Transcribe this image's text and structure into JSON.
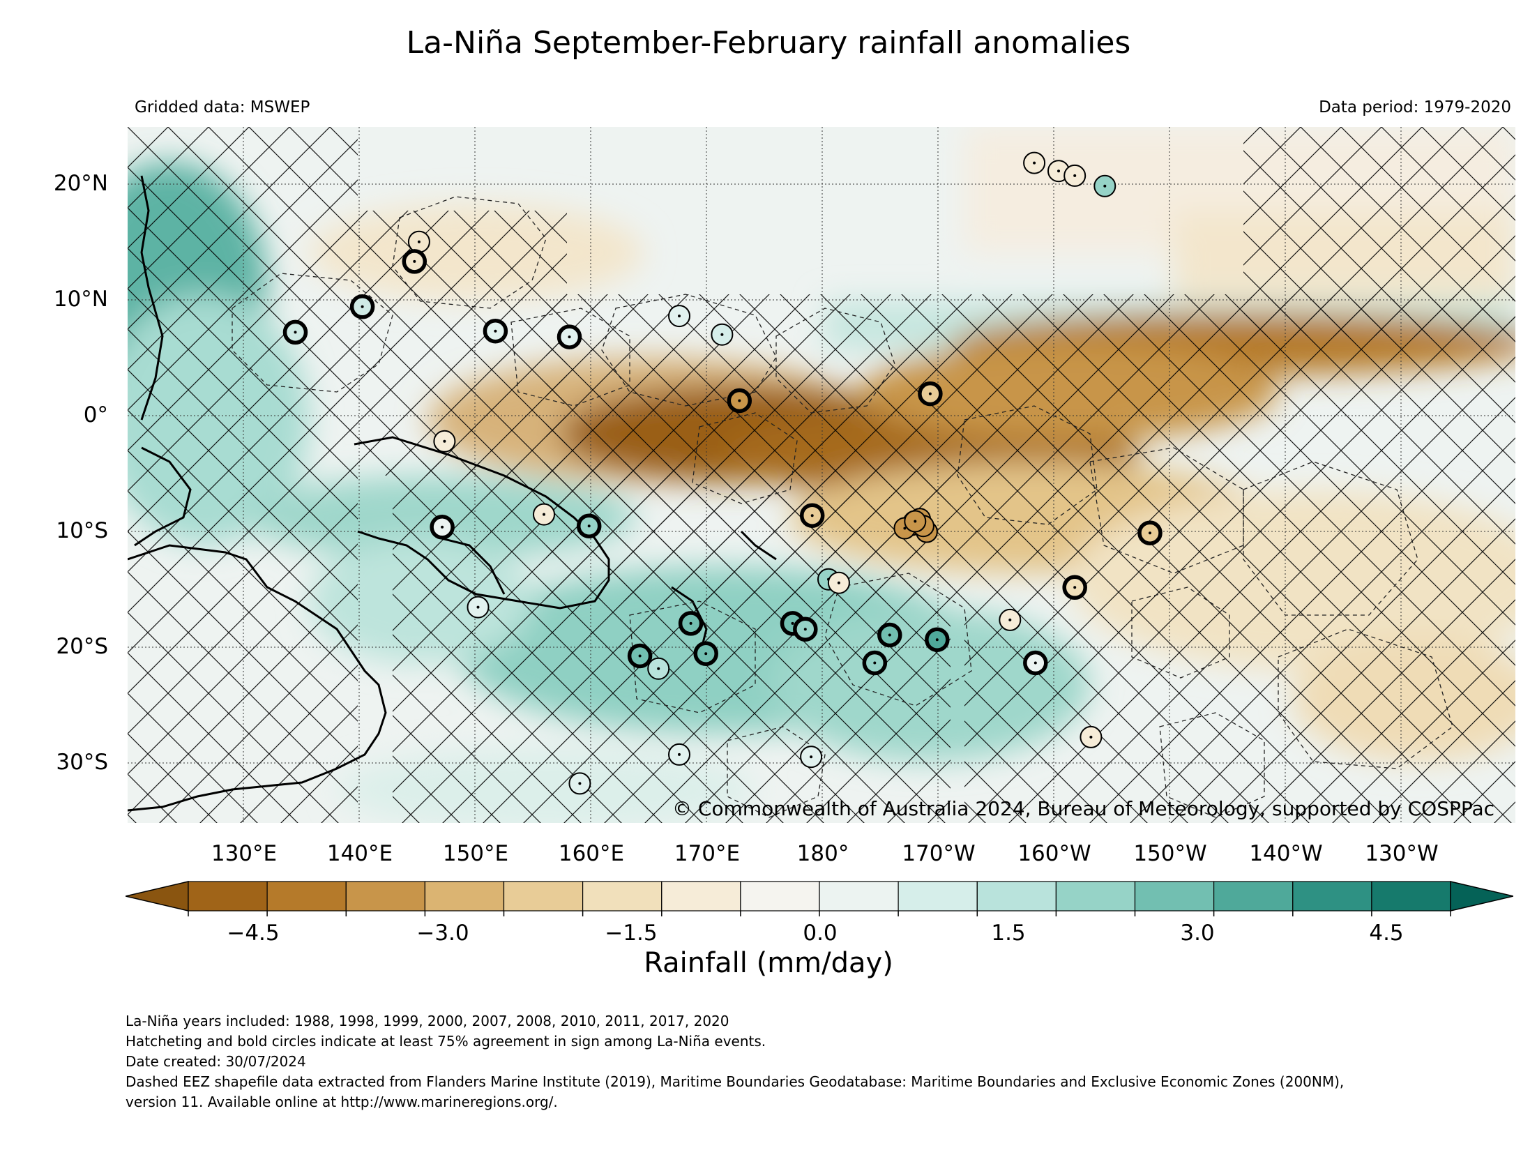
{
  "title": "La-Niña September-February rainfall anomalies",
  "gridded_data": "Gridded data: MSWEP",
  "data_period": "Data period: 1979-2020",
  "lat_labels": [
    "20°N",
    "10°N",
    "0°",
    "10°S",
    "20°S",
    "30°S"
  ],
  "lon_labels": [
    "130°E",
    "140°E",
    "150°E",
    "160°E",
    "170°E",
    "180°",
    "170°W",
    "160°W",
    "150°W",
    "140°W",
    "130°W"
  ],
  "copyright": "© Commonwealth of Australia 2024, Bureau of Meteorology, supported by COSPPac",
  "colorbar": {
    "title": "Rainfall (mm/day)",
    "tick_labels": [
      "−4.5",
      "−3.0",
      "−1.5",
      "0.0",
      "1.5",
      "3.0",
      "4.5"
    ],
    "colors": [
      "#8a5510",
      "#a06418",
      "#b57a2a",
      "#c8954a",
      "#dbb472",
      "#e8cc97",
      "#f1e0bb",
      "#f6ecd8",
      "#f5f4ef",
      "#ecf3f1",
      "#d6eeea",
      "#b9e3dc",
      "#96d3c7",
      "#72bfb1",
      "#4fa99a",
      "#2e9183",
      "#167a6c",
      "#056257"
    ],
    "extend": "both"
  },
  "notes": [
    "La-Niña years included: 1988, 1998, 1999, 2000, 2007, 2008, 2010, 2011, 2017, 2020",
    "Hatcheting and bold circles indicate at least 75% agreement in sign among La-Niña events.",
    "Date created: 30/07/2024",
    "Dashed EEZ shapefile data extracted from Flanders Marine Institute (2019), Maritime Boundaries Geodatabase: Maritime Boundaries and Exclusive Economic Zones (200NM),",
    "version 11. Available online at http://www.marineregions.org/."
  ],
  "map": {
    "extent_lon": [
      120,
      240
    ],
    "extent_lat": [
      -35,
      25
    ],
    "gridlines": true,
    "stations": [
      {
        "lon": 140.3,
        "lat": 9.5,
        "bold": true,
        "color": "#cfeae5"
      },
      {
        "lon": 134.5,
        "lat": 7.3,
        "bold": true,
        "color": "#cfeae5"
      },
      {
        "lon": 145.2,
        "lat": 15.1,
        "bold": false,
        "color": "#f3e6cc"
      },
      {
        "lon": 144.8,
        "lat": 13.4,
        "bold": true,
        "color": "#f3e6cc"
      },
      {
        "lon": 151.8,
        "lat": 7.4,
        "bold": true,
        "color": "#e2f2ef"
      },
      {
        "lon": 158.2,
        "lat": 6.9,
        "bold": true,
        "color": "#e2f2ef"
      },
      {
        "lon": 167.7,
        "lat": 8.7,
        "bold": false,
        "color": "#e2f2ef"
      },
      {
        "lon": 171.4,
        "lat": 7.1,
        "bold": false,
        "color": "#d6eeea"
      },
      {
        "lon": 172.9,
        "lat": 1.4,
        "bold": true,
        "color": "#c8954a"
      },
      {
        "lon": 189.4,
        "lat": 2.0,
        "bold": true,
        "color": "#e8cc97"
      },
      {
        "lon": 147.4,
        "lat": -2.1,
        "bold": false,
        "color": "#f6ecd8"
      },
      {
        "lon": 147.2,
        "lat": -9.5,
        "bold": true,
        "color": "#ecf3f1"
      },
      {
        "lon": 156.0,
        "lat": -8.4,
        "bold": false,
        "color": "#f6ecd8"
      },
      {
        "lon": 159.9,
        "lat": -9.4,
        "bold": true,
        "color": "#96d3c7"
      },
      {
        "lon": 179.2,
        "lat": -8.5,
        "bold": true,
        "color": "#e8cc97"
      },
      {
        "lon": 188.1,
        "lat": -9.1,
        "bold": true,
        "color": "#b57a2a"
      },
      {
        "lon": 188.0,
        "lat": -9.2,
        "bold": false,
        "color": "#b57a2a"
      },
      {
        "lon": 187.8,
        "lat": -9.3,
        "bold": false,
        "color": "#b57a2a"
      },
      {
        "lon": 189.1,
        "lat": -9.9,
        "bold": false,
        "color": "#c8954a"
      },
      {
        "lon": 188.5,
        "lat": -8.8,
        "bold": false,
        "color": "#c8954a"
      },
      {
        "lon": 187.2,
        "lat": -9.6,
        "bold": false,
        "color": "#c8954a"
      },
      {
        "lon": 188.8,
        "lat": -9.4,
        "bold": false,
        "color": "#c8954a"
      },
      {
        "lon": 188.1,
        "lat": -9.0,
        "bold": false,
        "color": "#c8954a"
      },
      {
        "lon": 188.0,
        "lat": -9.0,
        "bold": true,
        "color": "#c8954a"
      },
      {
        "lon": 188.1,
        "lat": -9.0,
        "bold": true,
        "color": "#b57a2a"
      },
      {
        "lon": 188.2,
        "lat": -9.1,
        "bold": true,
        "color": "#b57a2a"
      },
      {
        "lon": 188.0,
        "lat": -9.2,
        "bold": true,
        "color": "#b57a2a"
      },
      {
        "lon": 188.0,
        "lat": -9.1,
        "bold": true,
        "color": "#b57a2a"
      },
      {
        "lon": 188.1,
        "lat": -9.0,
        "bold": true,
        "color": "#b57a2a"
      },
      {
        "lon": 188.0,
        "lat": -9.0,
        "bold": true,
        "color": "#b57a2a"
      },
      {
        "lon": 188.1,
        "lat": -9.1,
        "bold": true,
        "color": "#b57a2a"
      },
      {
        "lon": 188.0,
        "lat": -9.0,
        "bold": true,
        "color": "#b57a2a"
      },
      {
        "lon": 188.1,
        "lat": -9.1,
        "bold": true,
        "color": "#b57a2a"
      },
      {
        "lon": 188.0,
        "lat": -9.0,
        "bold": true,
        "color": "#b57a2a"
      },
      {
        "lon": 188.1,
        "lat": -9.1,
        "bold": true,
        "color": "#b57a2a"
      },
      {
        "lon": 188.0,
        "lat": -9.0,
        "bold": true,
        "color": "#b57a2a"
      },
      {
        "lon": 188.0,
        "lat": -9.1,
        "bold": true,
        "color": "#b57a2a"
      },
      {
        "lon": 188.1,
        "lat": -9.0,
        "bold": true,
        "color": "#b57a2a"
      },
      {
        "lon": 188.1,
        "lat": -9.1,
        "bold": true,
        "color": "#b57a2a"
      },
      {
        "lon": 188.0,
        "lat": -9.0,
        "bold": true,
        "color": "#b57a2a"
      },
      {
        "lon": 188.0,
        "lat": -9.0,
        "bold": true,
        "color": "#b57a2a"
      },
      {
        "lon": 188.1,
        "lat": -9.1,
        "bold": true,
        "color": "#b57a2a"
      },
      {
        "lon": 188.1,
        "lat": -9.1,
        "bold": true,
        "color": "#b57a2a"
      },
      {
        "lon": 188.0,
        "lat": -9.0,
        "bold": true,
        "color": "#b57a2a"
      },
      {
        "lon": 188.1,
        "lat": -9.0,
        "bold": true,
        "color": "#b57a2a"
      },
      {
        "lon": 188.0,
        "lat": -9.1,
        "bold": true,
        "color": "#b57a2a"
      },
      {
        "lon": 188.0,
        "lat": -9.1,
        "bold": true,
        "color": "#b57a2a"
      },
      {
        "lon": 188.1,
        "lat": -9.0,
        "bold": true,
        "color": "#b57a2a"
      },
      {
        "lon": 188.1,
        "lat": -9.0,
        "bold": true,
        "color": "#b57a2a"
      },
      {
        "lon": 188.0,
        "lat": -9.1,
        "bold": true,
        "color": "#b57a2a"
      },
      {
        "lon": 188.0,
        "lat": -9.0,
        "bold": true,
        "color": "#b57a2a"
      },
      {
        "lon": 188.1,
        "lat": -9.1,
        "bold": true,
        "color": "#b57a2a"
      },
      {
        "lon": 188.0,
        "lat": -9.0,
        "bold": true,
        "color": "#b57a2a"
      },
      {
        "lon": 188.1,
        "lat": -9.0,
        "bold": true,
        "color": "#b57a2a"
      },
      {
        "lon": 188.0,
        "lat": -9.1,
        "bold": true,
        "color": "#b57a2a"
      },
      {
        "lon": 188.1,
        "lat": -9.1,
        "bold": true,
        "color": "#b57a2a"
      },
      {
        "lon": 188.1,
        "lat": -9.0,
        "bold": true,
        "color": "#b57a2a"
      },
      {
        "lon": 188.0,
        "lat": -9.0,
        "bold": true,
        "color": "#b57a2a"
      },
      {
        "lon": 188.0,
        "lat": -9.1,
        "bold": true,
        "color": "#b57a2a"
      },
      {
        "lon": 188.1,
        "lat": -9.0,
        "bold": true,
        "color": "#b57a2a"
      },
      {
        "lon": 188.0,
        "lat": -9.1,
        "bold": true,
        "color": "#b57a2a"
      },
      {
        "lon": 188.1,
        "lat": -9.1,
        "bold": true,
        "color": "#b57a2a"
      },
      {
        "lon": 188.0,
        "lat": -9.0,
        "bold": true,
        "color": "#b57a2a"
      },
      {
        "lon": 188.1,
        "lat": -9.0,
        "bold": true,
        "color": "#b57a2a"
      },
      {
        "lon": 188.0,
        "lat": -9.0,
        "bold": true,
        "color": "#b57a2a"
      },
      {
        "lon": 188.1,
        "lat": -9.1,
        "bold": true,
        "color": "#b57a2a"
      },
      {
        "lon": 188.0,
        "lat": -9.1,
        "bold": true,
        "color": "#b57a2a"
      },
      {
        "lon": 188.1,
        "lat": -9.0,
        "bold": true,
        "color": "#b57a2a"
      },
      {
        "lon": 188.0,
        "lat": -9.0,
        "bold": true,
        "color": "#b57a2a"
      },
      {
        "lon": 208.4,
        "lat": -10.0,
        "bold": true,
        "color": "#e8cc97"
      },
      {
        "lon": 168.7,
        "lat": -17.8,
        "bold": true,
        "color": "#72bfb1"
      },
      {
        "lon": 170.0,
        "lat": -20.4,
        "bold": true,
        "color": "#72bfb1"
      },
      {
        "lon": 164.3,
        "lat": -20.6,
        "bold": true,
        "color": "#72bfb1"
      },
      {
        "lon": 165.9,
        "lat": -21.7,
        "bold": false,
        "color": "#b9e3dc"
      },
      {
        "lon": 150.3,
        "lat": -16.4,
        "bold": false,
        "color": "#e2f2ef"
      },
      {
        "lon": 177.5,
        "lat": -17.8,
        "bold": true,
        "color": "#72bfb1"
      },
      {
        "lon": 178.6,
        "lat": -18.3,
        "bold": true,
        "color": "#96d3c7"
      },
      {
        "lon": 185.9,
        "lat": -18.8,
        "bold": true,
        "color": "#72bfb1"
      },
      {
        "lon": 190.0,
        "lat": -19.2,
        "bold": true,
        "color": "#4fa99a"
      },
      {
        "lon": 184.6,
        "lat": -21.2,
        "bold": true,
        "color": "#96d3c7"
      },
      {
        "lon": 198.5,
        "lat": -21.2,
        "bold": true,
        "color": "#ecf3f1"
      },
      {
        "lon": 201.9,
        "lat": -14.7,
        "bold": true,
        "color": "#f1e0bb"
      },
      {
        "lon": 196.3,
        "lat": -17.5,
        "bold": false,
        "color": "#f6ecd8"
      },
      {
        "lon": 180.6,
        "lat": -14.0,
        "bold": false,
        "color": "#96d3c7"
      },
      {
        "lon": 181.5,
        "lat": -14.3,
        "bold": false,
        "color": "#f6ecd8"
      },
      {
        "lon": 203.3,
        "lat": -27.6,
        "bold": false,
        "color": "#f6ecd8"
      },
      {
        "lon": 167.7,
        "lat": -29.1,
        "bold": false,
        "color": "#e2f2ef"
      },
      {
        "lon": 179.1,
        "lat": -29.3,
        "bold": false,
        "color": "#e2f2ef"
      },
      {
        "lon": 159.1,
        "lat": -31.6,
        "bold": false,
        "color": "#e2f2ef"
      },
      {
        "lon": 198.4,
        "lat": 21.9,
        "bold": false,
        "color": "#f6ecd8"
      },
      {
        "lon": 200.5,
        "lat": 21.2,
        "bold": false,
        "color": "#f6ecd8"
      },
      {
        "lon": 201.9,
        "lat": 20.8,
        "bold": false,
        "color": "#f6ecd8"
      },
      {
        "lon": 204.5,
        "lat": 19.9,
        "bold": false,
        "color": "#96d3c7"
      }
    ]
  }
}
